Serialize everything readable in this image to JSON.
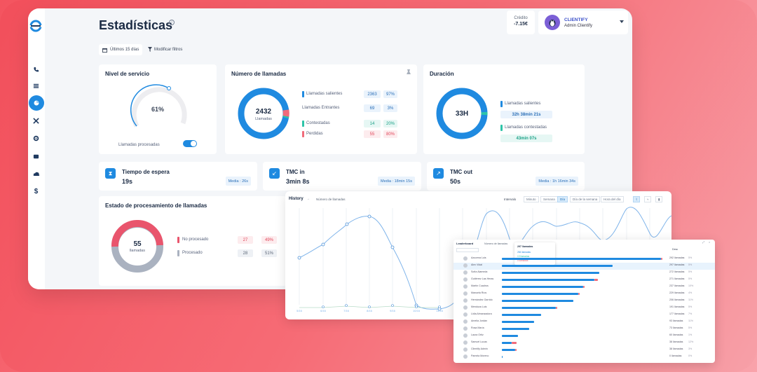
{
  "header": {
    "title": "Estadísticas"
  },
  "credit": {
    "label": "Crédito",
    "value": "-7.15€"
  },
  "user": {
    "name": "CLIENTIFY",
    "role": "Admin Clientify"
  },
  "filters": {
    "date": "Últimos 15 días",
    "modify": "Modificar filtros"
  },
  "nivel": {
    "title": "Nivel de servicio",
    "value": "61%",
    "percent": 61,
    "toggle_label": "Llamadas procesadas",
    "toggle_on": true
  },
  "numero": {
    "title": "Número de llamadas",
    "total": "2432",
    "unit": "Llamadas",
    "rows": [
      {
        "label": "Llamadas salientes",
        "count": "2363",
        "pct": "97%",
        "color": "#1f8ae0"
      },
      {
        "label": "Llamadas Entrantes",
        "count": "69",
        "pct": "3%",
        "color": ""
      },
      {
        "label": "Contestadas",
        "count": "14",
        "pct": "20%",
        "color": "#2ec4a8"
      },
      {
        "label": "Perdidas",
        "count": "55",
        "pct": "80%",
        "color": "#f06b7a"
      }
    ]
  },
  "duracion": {
    "title": "Duración",
    "value": "33H",
    "rows": [
      {
        "label": "Llamadas salientes",
        "value": "32h 38min 21s",
        "color": "#1f8ae0"
      },
      {
        "label": "Llamadas contestadas",
        "value": "43min 07s",
        "color": "#2ec4a8"
      }
    ]
  },
  "kpis": [
    {
      "title": "Tiempo de espera",
      "value": "19s",
      "media": "Media : 26s",
      "icon": "hourglass-icon"
    },
    {
      "title": "TMC in",
      "value": "3min 8s",
      "media": "Media : 18min 15s",
      "icon": "arrow-in-icon"
    },
    {
      "title": "TMC out",
      "value": "50s",
      "media": "Media : 1h 16min 34s",
      "icon": "arrow-out-icon"
    }
  ],
  "estado": {
    "title": "Estado de procesamiento de llamadas",
    "total": "55",
    "unit": "llamadas",
    "rows": [
      {
        "label": "No procesado",
        "count": "27",
        "pct": "49%",
        "color": "#e9556d"
      },
      {
        "label": "Procesado",
        "count": "28",
        "pct": "51%",
        "color": "#aab2c0"
      }
    ]
  },
  "history": {
    "title": "History",
    "metric": "Número de llamadas",
    "interval_label": "Intervalo",
    "tabs": [
      "Minuto",
      "Semana",
      "Día",
      "Día de la semana",
      "Hora del día"
    ],
    "active_tab": "Día",
    "x_labels": [
      "5/16",
      "6/16",
      "7/16",
      "8/16",
      "9/16",
      "10/16",
      "11/16"
    ]
  },
  "leaderboard": {
    "title": "Leaderboard",
    "metric": "Número de llamadas",
    "sort_label": "Desc",
    "tooltip": {
      "title": "297 llamadas",
      "lines": [
        "284 llamadas",
        "13 llamadas",
        "0 llamadas"
      ]
    },
    "rows": [
      {
        "name": "Azucena Luis",
        "value": "292 llamadas",
        "pct": "5%",
        "fill": 0.98,
        "red": 0.01
      },
      {
        "name": "Alex Vidal",
        "value": "297 llamadas",
        "pct": "5%",
        "fill": 0.68,
        "red": 0
      },
      {
        "name": "Sofía Alameda",
        "value": "272 llamadas",
        "pct": "5%",
        "fill": 0.6,
        "red": 0
      },
      {
        "name": "Gutiérrez Las Heras",
        "value": "271 llamadas",
        "pct": "5%",
        "fill": 0.57,
        "red": 0.02
      },
      {
        "name": "Martín Cuadros",
        "value": "237 llamadas",
        "pct": "10%",
        "fill": 0.5,
        "red": 0.01
      },
      {
        "name": "Manuela Ríos",
        "value": "229 llamadas",
        "pct": "4%",
        "fill": 0.47,
        "red": 0.01
      },
      {
        "name": "Hernández Garrido",
        "value": "206 llamadas",
        "pct": "11%",
        "fill": 0.44,
        "red": 0
      },
      {
        "name": "Mendoza Luis",
        "value": "191 llamadas",
        "pct": "5%",
        "fill": 0.33,
        "red": 0.01
      },
      {
        "name": "Lidia Almanzadora",
        "value": "177 llamadas",
        "pct": "7%",
        "fill": 0.24,
        "red": 0
      },
      {
        "name": "Amelia Jordán",
        "value": "93 llamadas",
        "pct": "11%",
        "fill": 0.2,
        "red": 0
      },
      {
        "name": "Rosa María",
        "value": "73 llamadas",
        "pct": "5%",
        "fill": 0.17,
        "red": 0
      },
      {
        "name": "Laura Ortiz",
        "value": "60 llamadas",
        "pct": "1%",
        "fill": 0.1,
        "red": 0
      },
      {
        "name": "Samuel Lucas",
        "value": "38 llamadas",
        "pct": "12%",
        "fill": 0.06,
        "red": 0.03
      },
      {
        "name": "Clientify Admin",
        "value": "38 llamadas",
        "pct": "3%",
        "fill": 0.08,
        "red": 0.01
      },
      {
        "name": "Pamela Moreno",
        "value": "0 llamadas",
        "pct": "0%",
        "fill": 0.005,
        "red": 0
      }
    ]
  }
}
